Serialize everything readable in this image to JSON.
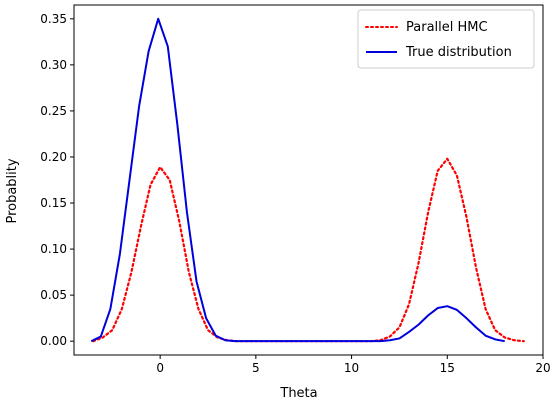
{
  "chart_data": {
    "type": "line",
    "title": "",
    "xlabel": "Theta",
    "ylabel": "Probablity",
    "xlim": [
      -4.5,
      20
    ],
    "ylim": [
      -0.015,
      0.365
    ],
    "xticks": [
      0,
      5,
      10,
      15,
      20
    ],
    "xtick_labels": [
      "0",
      "5",
      "10",
      "15",
      "20"
    ],
    "yticks": [
      0.0,
      0.05,
      0.1,
      0.15,
      0.2,
      0.25,
      0.3,
      0.35
    ],
    "ytick_labels": [
      "0.00",
      "0.05",
      "0.10",
      "0.15",
      "0.20",
      "0.25",
      "0.30",
      "0.35"
    ],
    "grid": false,
    "legend_position": "top-right",
    "series": [
      {
        "name": "Parallel HMC",
        "color": "#ff0000",
        "style": "dotted",
        "x": [
          -3.5,
          -3.0,
          -2.5,
          -2.0,
          -1.5,
          -1.0,
          -0.5,
          0.0,
          0.5,
          1.0,
          1.5,
          2.0,
          2.5,
          3.0,
          3.5,
          4.0,
          5.0,
          10.0,
          11.0,
          11.5,
          12.0,
          12.5,
          13.0,
          13.5,
          14.0,
          14.5,
          15.0,
          15.5,
          16.0,
          16.5,
          17.0,
          17.5,
          18.0,
          18.5,
          19.0
        ],
        "y": [
          0.0,
          0.004,
          0.012,
          0.035,
          0.075,
          0.125,
          0.17,
          0.189,
          0.175,
          0.13,
          0.075,
          0.035,
          0.012,
          0.004,
          0.001,
          0.0,
          0.0,
          0.0,
          0.0,
          0.001,
          0.005,
          0.015,
          0.04,
          0.085,
          0.14,
          0.185,
          0.198,
          0.18,
          0.135,
          0.08,
          0.035,
          0.012,
          0.004,
          0.001,
          0.0
        ]
      },
      {
        "name": "True distribution",
        "color": "#0000dd",
        "style": "solid",
        "x": [
          -3.6,
          -3.1,
          -2.6,
          -2.1,
          -1.6,
          -1.1,
          -0.6,
          -0.1,
          0.4,
          0.9,
          1.4,
          1.9,
          2.4,
          2.9,
          3.4,
          3.9,
          5.0,
          10.0,
          11.5,
          12.0,
          12.5,
          13.0,
          13.5,
          14.0,
          14.5,
          15.0,
          15.5,
          16.0,
          16.5,
          17.0,
          17.5,
          18.0
        ],
        "y": [
          0.0,
          0.005,
          0.035,
          0.095,
          0.175,
          0.255,
          0.315,
          0.35,
          0.32,
          0.235,
          0.14,
          0.065,
          0.025,
          0.006,
          0.001,
          0.0,
          0.0,
          0.0,
          0.0,
          0.001,
          0.003,
          0.01,
          0.018,
          0.028,
          0.036,
          0.038,
          0.034,
          0.025,
          0.015,
          0.006,
          0.002,
          0.0
        ]
      }
    ]
  }
}
